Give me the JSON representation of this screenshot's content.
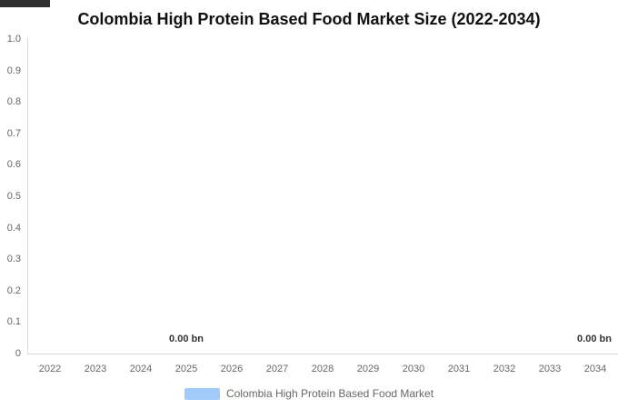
{
  "page": {
    "title": "Colombia High Protein Based Food Market Size (2022-2034)"
  },
  "colors": {
    "series": "#a2cbf9",
    "axis_line": "#d9d9d9",
    "tick_label": "#666666",
    "title": "#111111",
    "data_label": "#333333",
    "top_bar": "#2e2e2e",
    "background": "#ffffff"
  },
  "legend": {
    "label": "Colombia High Protein Based Food Market",
    "swatch_color": "#a2cbf9"
  },
  "chart_data": {
    "type": "bar",
    "title": "Colombia High Protein Based Food Market Size (2022-2034)",
    "categories": [
      "2022",
      "2023",
      "2024",
      "2025",
      "2026",
      "2027",
      "2028",
      "2029",
      "2030",
      "2031",
      "2032",
      "2033",
      "2034"
    ],
    "series": [
      {
        "name": "Colombia High Protein Based Food Market",
        "values": [
          0,
          0,
          0,
          0,
          0,
          0,
          0,
          0,
          0,
          0,
          0,
          0,
          0
        ],
        "color": "#a2cbf9"
      }
    ],
    "point_labels": [
      {
        "category": "2025",
        "text": "0.00 bn"
      },
      {
        "category": "2034",
        "text": "0.00 bn"
      }
    ],
    "xlabel": "",
    "ylabel": "",
    "ylim": [
      0,
      1
    ],
    "ytick_step": 0.1,
    "yticklabels": [
      "1.0",
      "0.9",
      "0.8",
      "0.7",
      "0.6",
      "0.5",
      "0.4",
      "0.3",
      "0.2",
      "0.1",
      "0"
    ],
    "grid": false,
    "legend_position": "bottom"
  }
}
